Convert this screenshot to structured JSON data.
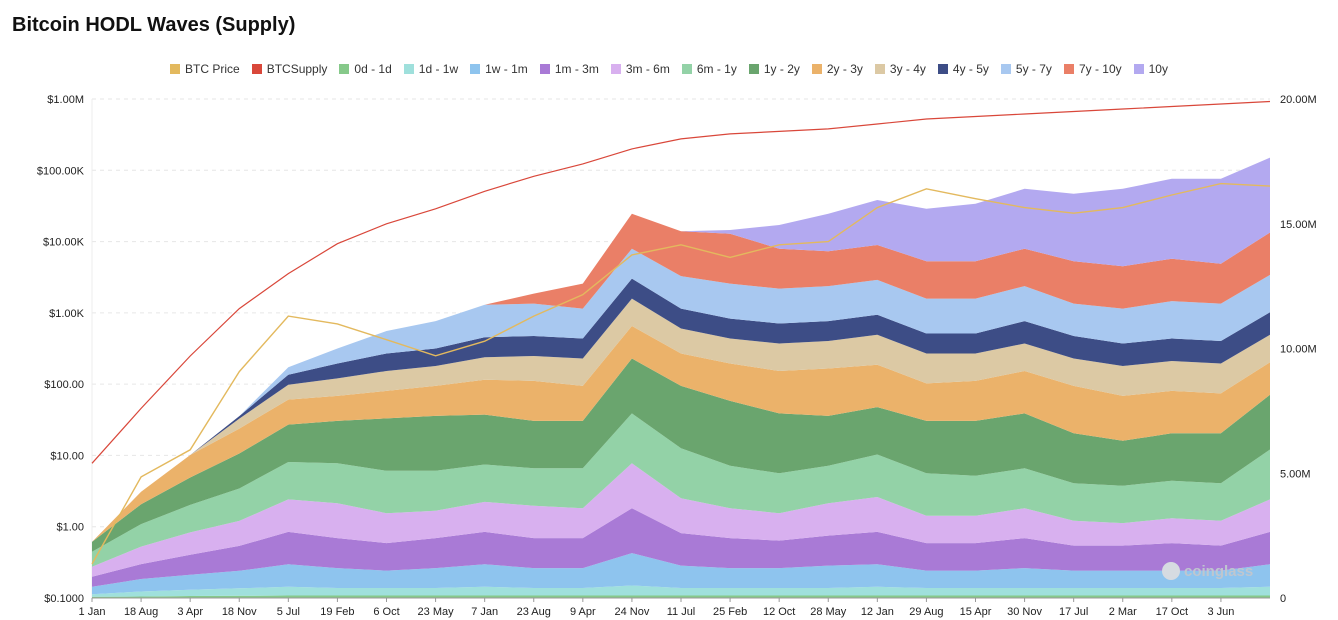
{
  "chart_data": {
    "type": "area",
    "title": "Bitcoin HODL Waves (Supply)",
    "y_left": {
      "scale": "log",
      "min": 0.1,
      "max": 1000000,
      "ticks": [
        {
          "value": 0.1,
          "label": "$0.1000"
        },
        {
          "value": 1,
          "label": "$1.00"
        },
        {
          "value": 10,
          "label": "$10.00"
        },
        {
          "value": 100,
          "label": "$100.00"
        },
        {
          "value": 1000,
          "label": "$1.00K"
        },
        {
          "value": 10000,
          "label": "$10.00K"
        },
        {
          "value": 100000,
          "label": "$100.00K"
        },
        {
          "value": 1000000,
          "label": "$1.00M"
        }
      ]
    },
    "y_right": {
      "scale": "linear",
      "min": 0,
      "max": 20000000,
      "ticks": [
        {
          "value": 0,
          "label": "0"
        },
        {
          "value": 5000000,
          "label": "5.00M"
        },
        {
          "value": 10000000,
          "label": "10.00M"
        },
        {
          "value": 15000000,
          "label": "15.00M"
        },
        {
          "value": 20000000,
          "label": "20.00M"
        }
      ]
    },
    "x_ticks": [
      "1 Jan",
      "18 Aug",
      "3 Apr",
      "18 Nov",
      "5 Jul",
      "19 Feb",
      "6 Oct",
      "23 May",
      "7 Jan",
      "23 Aug",
      "9 Apr",
      "24 Nov",
      "11 Jul",
      "25 Feb",
      "12 Oct",
      "28 May",
      "12 Jan",
      "29 Aug",
      "15 Apr",
      "30 Nov",
      "17 Jul",
      "2 Mar",
      "17 Oct",
      "3 Jun"
    ],
    "x_index": [
      0,
      1,
      2,
      3,
      4,
      5,
      6,
      7,
      8,
      9,
      10,
      11,
      12,
      13,
      14,
      15,
      16,
      17,
      18,
      19,
      20,
      21,
      22,
      23,
      24
    ],
    "legend": [
      {
        "name": "BTC Price",
        "color": "#e3b95e"
      },
      {
        "name": "BTCSupply",
        "color": "#d9473a"
      },
      {
        "name": "0d - 1d",
        "color": "#86c98a"
      },
      {
        "name": "1d - 1w",
        "color": "#9fe0dc"
      },
      {
        "name": "1w - 1m",
        "color": "#8ec4ee"
      },
      {
        "name": "1m - 3m",
        "color": "#a97ad6"
      },
      {
        "name": "3m - 6m",
        "color": "#d8b0ef"
      },
      {
        "name": "6m - 1y",
        "color": "#93d2a7"
      },
      {
        "name": "1y - 2y",
        "color": "#6aa56e"
      },
      {
        "name": "2y - 3y",
        "color": "#ebb26a"
      },
      {
        "name": "3y - 4y",
        "color": "#dcc9a4"
      },
      {
        "name": "4y - 5y",
        "color": "#3d4d86"
      },
      {
        "name": "5y - 7y",
        "color": "#a8c8f0"
      },
      {
        "name": "7y - 10y",
        "color": "#ea7f67"
      },
      {
        "name": "10y",
        "color": "#b3a9f0"
      }
    ],
    "series": [
      {
        "name": "0d - 1d",
        "color": "#86c98a",
        "values": [
          0.05,
          0.06,
          0.08,
          0.09,
          0.1,
          0.1,
          0.1,
          0.1,
          0.1,
          0.1,
          0.1,
          0.1,
          0.1,
          0.1,
          0.1,
          0.1,
          0.1,
          0.1,
          0.1,
          0.1,
          0.1,
          0.1,
          0.1,
          0.1,
          0.1
        ]
      },
      {
        "name": "1d - 1w",
        "color": "#9fe0dc",
        "values": [
          0.1,
          0.2,
          0.25,
          0.3,
          0.35,
          0.3,
          0.3,
          0.3,
          0.35,
          0.3,
          0.3,
          0.4,
          0.3,
          0.3,
          0.3,
          0.3,
          0.35,
          0.3,
          0.3,
          0.3,
          0.3,
          0.3,
          0.3,
          0.3,
          0.35
        ]
      },
      {
        "name": "1w - 1m",
        "color": "#8ec4ee",
        "values": [
          0.3,
          0.5,
          0.6,
          0.7,
          0.9,
          0.8,
          0.7,
          0.8,
          0.9,
          0.8,
          0.8,
          1.3,
          0.9,
          0.8,
          0.8,
          0.9,
          0.9,
          0.7,
          0.7,
          0.8,
          0.7,
          0.7,
          0.7,
          0.7,
          0.9
        ]
      },
      {
        "name": "1m - 3m",
        "color": "#a97ad6",
        "values": [
          0.4,
          0.6,
          0.8,
          1.0,
          1.3,
          1.2,
          1.1,
          1.2,
          1.3,
          1.2,
          1.2,
          1.8,
          1.3,
          1.2,
          1.1,
          1.2,
          1.3,
          1.1,
          1.1,
          1.2,
          1.0,
          1.0,
          1.1,
          1.0,
          1.3
        ]
      },
      {
        "name": "3m - 6m",
        "color": "#d8b0ef",
        "values": [
          0.4,
          0.7,
          0.9,
          1.0,
          1.3,
          1.4,
          1.2,
          1.1,
          1.2,
          1.3,
          1.2,
          1.8,
          1.4,
          1.2,
          1.1,
          1.3,
          1.4,
          1.1,
          1.1,
          1.2,
          1.0,
          0.9,
          1.0,
          1.0,
          1.3
        ]
      },
      {
        "name": "6m - 1y",
        "color": "#93d2a7",
        "values": [
          0.6,
          0.9,
          1.1,
          1.3,
          1.5,
          1.6,
          1.7,
          1.6,
          1.5,
          1.5,
          1.6,
          2.0,
          2.0,
          1.7,
          1.6,
          1.5,
          1.7,
          1.7,
          1.6,
          1.6,
          1.5,
          1.5,
          1.5,
          1.5,
          2.0
        ]
      },
      {
        "name": "1y - 2y",
        "color": "#6aa56e",
        "values": [
          0.4,
          0.8,
          1.1,
          1.4,
          1.5,
          1.7,
          2.1,
          2.2,
          2.0,
          1.9,
          1.9,
          2.2,
          2.5,
          2.6,
          2.4,
          2.0,
          1.9,
          2.1,
          2.2,
          2.2,
          2.0,
          1.8,
          1.9,
          2.0,
          2.2
        ]
      },
      {
        "name": "2y - 3y",
        "color": "#ebb26a",
        "values": [
          0.0,
          0.5,
          0.9,
          1.0,
          1.0,
          1.0,
          1.1,
          1.2,
          1.4,
          1.6,
          1.4,
          1.3,
          1.3,
          1.5,
          1.7,
          1.9,
          1.7,
          1.5,
          1.6,
          1.7,
          1.9,
          1.8,
          1.7,
          1.6,
          1.3
        ]
      },
      {
        "name": "3y - 4y",
        "color": "#dcc9a4",
        "values": [
          0.0,
          0.0,
          0.0,
          0.4,
          0.6,
          0.7,
          0.8,
          0.8,
          0.9,
          1.0,
          1.1,
          1.1,
          1.0,
          1.0,
          1.1,
          1.1,
          1.2,
          1.2,
          1.1,
          1.1,
          1.1,
          1.2,
          1.2,
          1.2,
          1.1
        ]
      },
      {
        "name": "4y - 5y",
        "color": "#3d4d86",
        "values": [
          0.0,
          0.0,
          0.0,
          0.1,
          0.4,
          0.6,
          0.7,
          0.7,
          0.8,
          0.8,
          0.8,
          0.8,
          0.8,
          0.8,
          0.8,
          0.8,
          0.8,
          0.8,
          0.8,
          0.9,
          0.9,
          0.9,
          0.9,
          0.9,
          0.9
        ]
      },
      {
        "name": "5y - 7y",
        "color": "#a8c8f0",
        "values": [
          0.0,
          0.0,
          0.0,
          0.0,
          0.3,
          0.6,
          0.9,
          1.1,
          1.3,
          1.3,
          1.2,
          1.2,
          1.3,
          1.4,
          1.4,
          1.4,
          1.4,
          1.4,
          1.4,
          1.4,
          1.3,
          1.4,
          1.5,
          1.5,
          1.5
        ]
      },
      {
        "name": "7y - 10y",
        "color": "#ea7f67",
        "values": [
          0.0,
          0.0,
          0.0,
          0.0,
          0.0,
          0.0,
          0.0,
          0.0,
          0.0,
          0.4,
          1.0,
          1.4,
          1.8,
          2.0,
          1.6,
          1.4,
          1.4,
          1.5,
          1.5,
          1.5,
          1.7,
          1.7,
          1.7,
          1.6,
          1.7
        ]
      },
      {
        "name": "10y",
        "color": "#b3a9f0",
        "values": [
          0.0,
          0.0,
          0.0,
          0.0,
          0.0,
          0.0,
          0.0,
          0.0,
          0.0,
          0.0,
          0.0,
          0.0,
          0.0,
          0.15,
          0.95,
          1.5,
          1.8,
          2.1,
          2.3,
          2.4,
          2.7,
          3.1,
          3.2,
          3.4,
          3.0
        ]
      }
    ],
    "supply": [
      5.4,
      7.6,
      9.7,
      11.6,
      13.0,
      14.2,
      15.0,
      15.6,
      16.3,
      16.9,
      17.4,
      18.0,
      18.4,
      18.6,
      18.7,
      18.8,
      19.0,
      19.2,
      19.3,
      19.4,
      19.5,
      19.6,
      19.7,
      19.8,
      19.9
    ],
    "supply_unit": "M BTC",
    "price": [
      0.3,
      5,
      12,
      150,
      900,
      700,
      420,
      250,
      400,
      900,
      1800,
      6500,
      9000,
      6000,
      9000,
      10000,
      30000,
      55000,
      40000,
      30000,
      25000,
      30000,
      45000,
      65000,
      60000
    ]
  },
  "watermark": "coinglass"
}
